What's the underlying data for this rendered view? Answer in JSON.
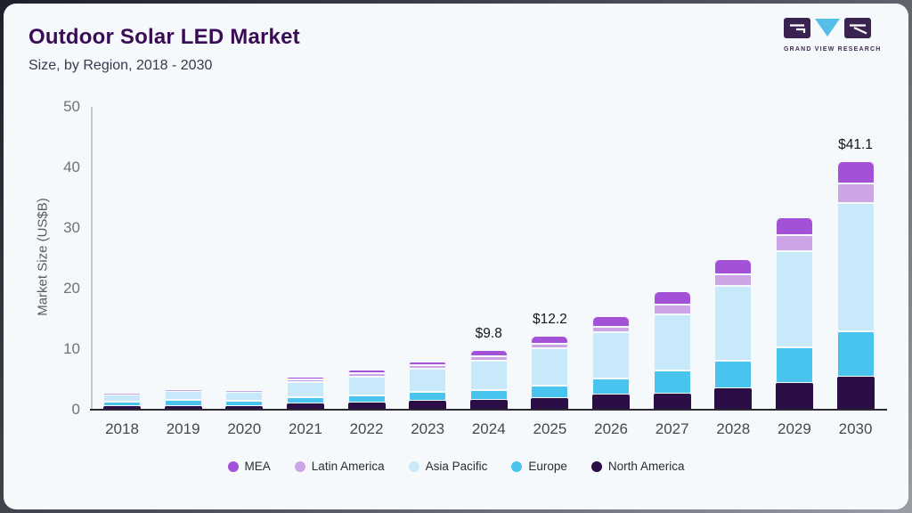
{
  "header": {
    "title": "Outdoor Solar LED Market",
    "subtitle": "Size, by Region, 2018 - 2030"
  },
  "logo": {
    "brand": "GRAND VIEW RESEARCH",
    "colors": {
      "block": "#3a2350",
      "triangle": "#55bfe8"
    }
  },
  "chart_data": {
    "type": "bar",
    "stacked": true,
    "title": "Outdoor Solar LED Market Size, by Region, 2018 - 2030",
    "ylabel": "Market Size (US$B)",
    "ylim": [
      0,
      50
    ],
    "yticks": [
      0,
      10,
      20,
      30,
      40,
      50
    ],
    "grid": false,
    "legend_position": "bottom",
    "categories": [
      "2018",
      "2019",
      "2020",
      "2021",
      "2022",
      "2023",
      "2024",
      "2025",
      "2026",
      "2027",
      "2028",
      "2029",
      "2030"
    ],
    "series": [
      {
        "name": "North America",
        "color": "#2b0e46",
        "values": [
          0.55,
          0.6,
          0.6,
          1.05,
          1.2,
          1.45,
          1.6,
          1.95,
          2.45,
          2.7,
          3.5,
          4.4,
          5.5
        ]
      },
      {
        "name": "Europe",
        "color": "#49c4ee",
        "values": [
          0.85,
          0.95,
          0.9,
          1.05,
          1.2,
          1.45,
          1.7,
          2.0,
          2.7,
          3.8,
          4.65,
          5.9,
          7.4
        ]
      },
      {
        "name": "Asia Pacific",
        "color": "#c8e9fa",
        "values": [
          1.15,
          1.5,
          1.45,
          2.5,
          3.1,
          3.9,
          4.8,
          6.2,
          7.6,
          9.3,
          12.25,
          15.9,
          21.2
        ]
      },
      {
        "name": "Latin America",
        "color": "#cda5e7",
        "values": [
          0.1,
          0.25,
          0.2,
          0.45,
          0.5,
          0.6,
          0.7,
          0.8,
          1.0,
          1.6,
          2.0,
          2.7,
          3.2
        ]
      },
      {
        "name": "MEA",
        "color": "#a351d6",
        "values": [
          0.1,
          0.2,
          0.15,
          0.45,
          0.65,
          0.6,
          1.0,
          1.25,
          1.65,
          2.1,
          2.4,
          2.9,
          3.8
        ]
      }
    ],
    "totals": {
      "2024": 9.8,
      "2025": 12.2,
      "2030": 41.1
    },
    "annotations": [
      {
        "category": "2024",
        "label": "$9.8"
      },
      {
        "category": "2025",
        "label": "$12.2"
      },
      {
        "category": "2030",
        "label": "$41.1"
      }
    ],
    "legend_order": [
      "MEA",
      "Latin America",
      "Asia Pacific",
      "Europe",
      "North America"
    ]
  }
}
